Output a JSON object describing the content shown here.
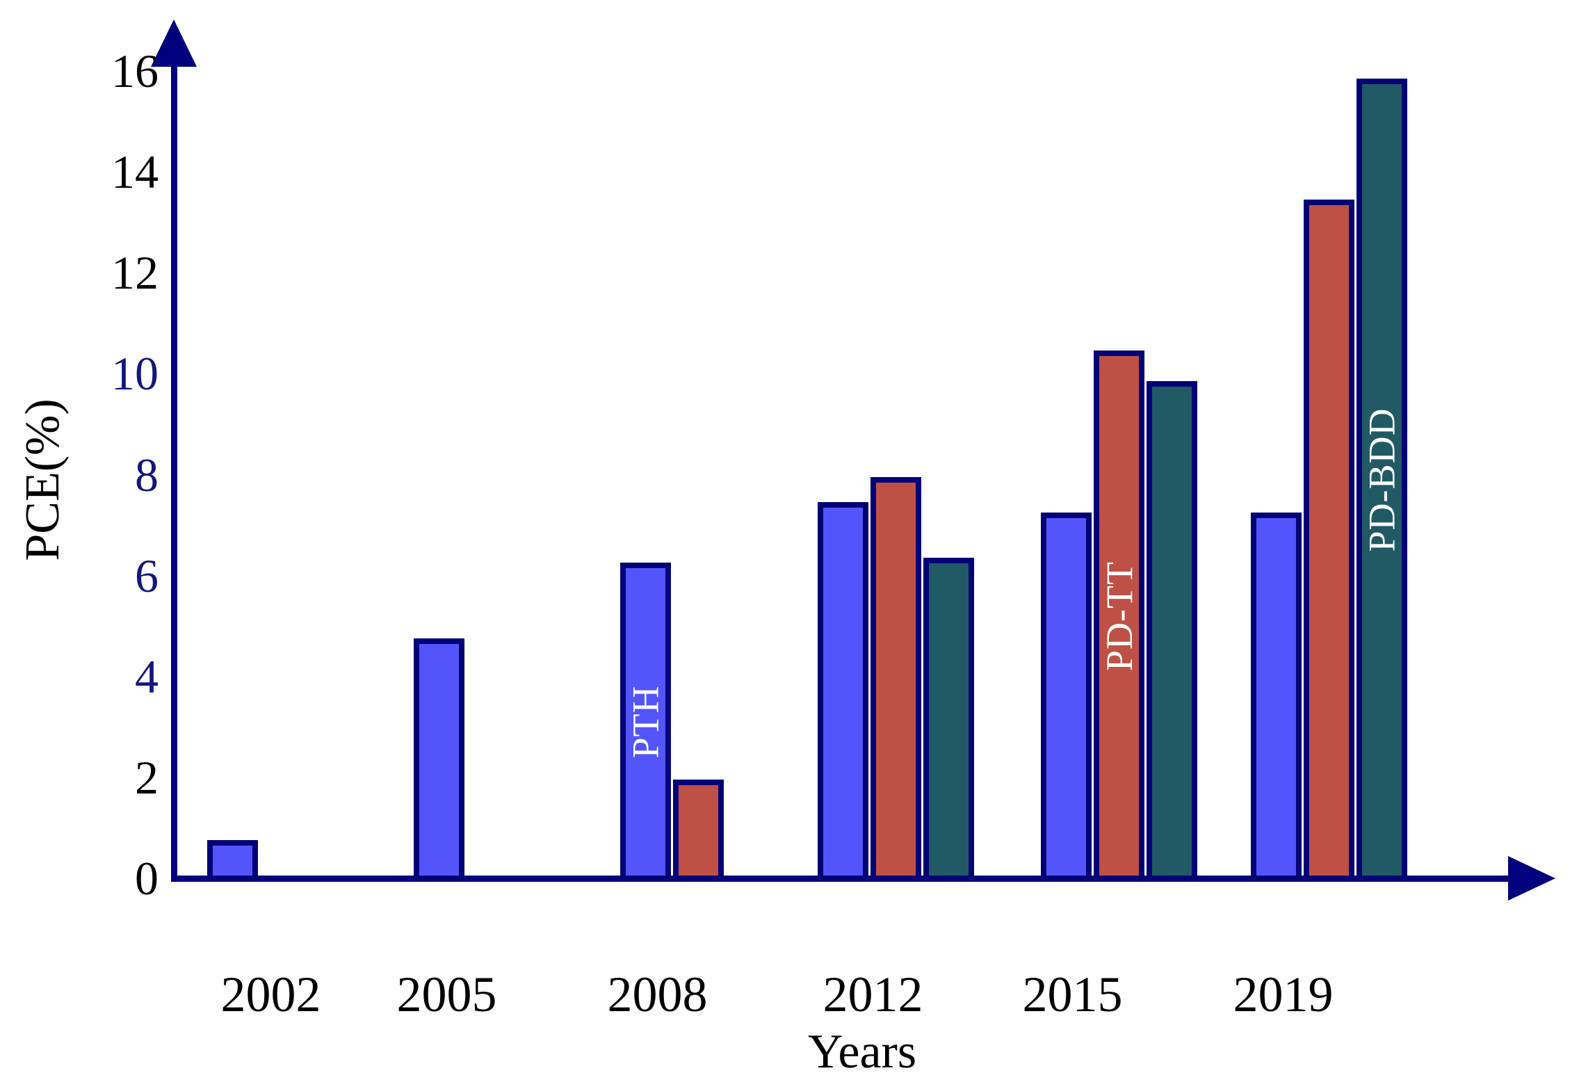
{
  "chart_data": {
    "type": "bar",
    "title": "",
    "xlabel": "Years",
    "ylabel": "PCE(%)",
    "ylim": [
      0,
      16
    ],
    "grid": false,
    "legend_position": "none (series names written vertically inside representative bars)",
    "background_color": "#ffffff",
    "axis_color": "#01017d",
    "bar_outline_color": "#020277",
    "categories": [
      "2002",
      "2005",
      "2008",
      "2012",
      "2015",
      "2019"
    ],
    "series": [
      {
        "name": "PTH",
        "color": "#5355fb",
        "values": [
          0.7,
          4.7,
          6.2,
          7.4,
          7.2,
          7.2
        ]
      },
      {
        "name": "PD-TT",
        "color": "#bf5045",
        "values": [
          null,
          null,
          1.9,
          7.9,
          10.4,
          13.4
        ]
      },
      {
        "name": "PD-BDD",
        "color": "#215a64",
        "values": [
          null,
          null,
          null,
          6.3,
          9.8,
          15.8
        ]
      }
    ],
    "y_ticks": [
      {
        "value": 0,
        "label": "0",
        "color": "#000000"
      },
      {
        "value": 2,
        "label": "2",
        "color": "#000000"
      },
      {
        "value": 4,
        "label": "4",
        "color": "#15157e"
      },
      {
        "value": 6,
        "label": "6",
        "color": "#15157e"
      },
      {
        "value": 8,
        "label": "8",
        "color": "#15157e"
      },
      {
        "value": 10,
        "label": "10",
        "color": "#15157e"
      },
      {
        "value": 12,
        "label": "12",
        "color": "#000000"
      },
      {
        "value": 14,
        "label": "14",
        "color": "#000000"
      },
      {
        "value": 16,
        "label": "16",
        "color": "#000000"
      }
    ],
    "bar_labels": [
      {
        "series": "PTH",
        "category": "2008",
        "text": "PTH",
        "color": "#ffffff"
      },
      {
        "series": "PD-TT",
        "category": "2015",
        "text": "PD-TT",
        "color": "#ffffff"
      },
      {
        "series": "PD-BDD",
        "category": "2019",
        "text": "PD-BDD",
        "color": "#ffffff"
      }
    ]
  }
}
